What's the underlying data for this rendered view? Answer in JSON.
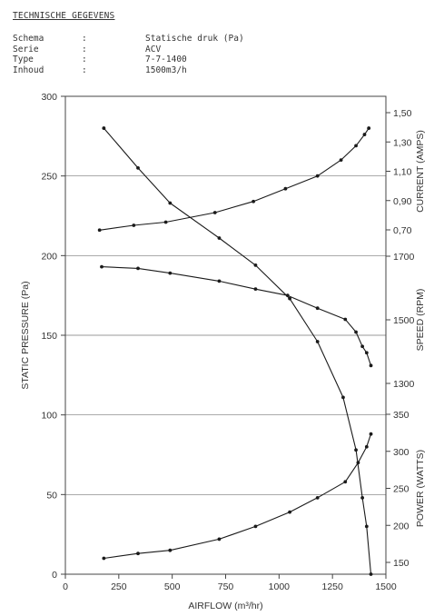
{
  "header": {
    "title": "TECHNISCHE GEGEVENS",
    "rows": [
      {
        "key": "Schema",
        "sep": ":",
        "value": "Statische druk (Pa)"
      },
      {
        "key": "Serie",
        "sep": ":",
        "value": "ACV"
      },
      {
        "key": "Type",
        "sep": ":",
        "value": "7-7-1400"
      },
      {
        "key": "Inhoud",
        "sep": ":",
        "value": "1500m3/h"
      }
    ]
  },
  "chart_data": {
    "type": "line",
    "title": "",
    "xlabel": "AIRFLOW (m³/hr)",
    "ylabel": "STATIC PRESSURE (Pa)",
    "grid": true,
    "x_axis": {
      "min": 0,
      "max": 1500,
      "ticks": [
        0,
        250,
        500,
        750,
        1000,
        1250,
        1500
      ]
    },
    "y_axis": {
      "min": 0,
      "max": 300,
      "ticks": [
        0,
        50,
        100,
        150,
        200,
        250,
        300
      ]
    },
    "right_axes": [
      {
        "label": "CURRENT (AMPS)",
        "min": 0.5,
        "max": 1.6,
        "ticks": [
          "1,50",
          "1,30",
          "1,10",
          "0,90",
          "0,70"
        ],
        "tick_values": [
          1.5,
          1.3,
          1.1,
          0.9,
          0.7
        ]
      },
      {
        "label": "SPEED (RPM)",
        "min": 1300,
        "max": 1700,
        "ticks": [
          "1700",
          "1500",
          "1300"
        ],
        "tick_values": [
          1700,
          1500,
          1300
        ]
      },
      {
        "label": "POWER (WATTS)",
        "min": 150,
        "max": 350,
        "ticks": [
          "350",
          "300",
          "250",
          "200",
          "150"
        ],
        "tick_values": [
          350,
          300,
          250,
          200,
          150
        ]
      }
    ],
    "series": [
      {
        "values": [
          [
            180,
            280
          ],
          [
            340,
            255
          ],
          [
            490,
            233
          ],
          [
            720,
            211
          ],
          [
            890,
            194
          ],
          [
            1050,
            173
          ],
          [
            1180,
            146
          ],
          [
            1300,
            111
          ],
          [
            1360,
            78
          ],
          [
            1390,
            48
          ],
          [
            1410,
            30
          ],
          [
            1430,
            0
          ]
        ]
      },
      {
        "values": [
          [
            160,
            216
          ],
          [
            320,
            219
          ],
          [
            470,
            221
          ],
          [
            700,
            227
          ],
          [
            880,
            234
          ],
          [
            1030,
            242
          ],
          [
            1180,
            250
          ],
          [
            1290,
            260
          ],
          [
            1360,
            269
          ],
          [
            1400,
            276
          ],
          [
            1420,
            280
          ]
        ]
      },
      {
        "values": [
          [
            170,
            193
          ],
          [
            340,
            192
          ],
          [
            490,
            189
          ],
          [
            720,
            184
          ],
          [
            890,
            179
          ],
          [
            1040,
            175
          ],
          [
            1180,
            167
          ],
          [
            1310,
            160
          ],
          [
            1360,
            152
          ],
          [
            1390,
            143
          ],
          [
            1410,
            139
          ],
          [
            1430,
            131
          ]
        ]
      },
      {
        "values": [
          [
            180,
            10
          ],
          [
            340,
            13
          ],
          [
            490,
            15
          ],
          [
            720,
            22
          ],
          [
            890,
            30
          ],
          [
            1050,
            39
          ],
          [
            1180,
            48
          ],
          [
            1310,
            58
          ],
          [
            1370,
            70
          ],
          [
            1410,
            80
          ],
          [
            1430,
            88
          ]
        ]
      }
    ]
  }
}
